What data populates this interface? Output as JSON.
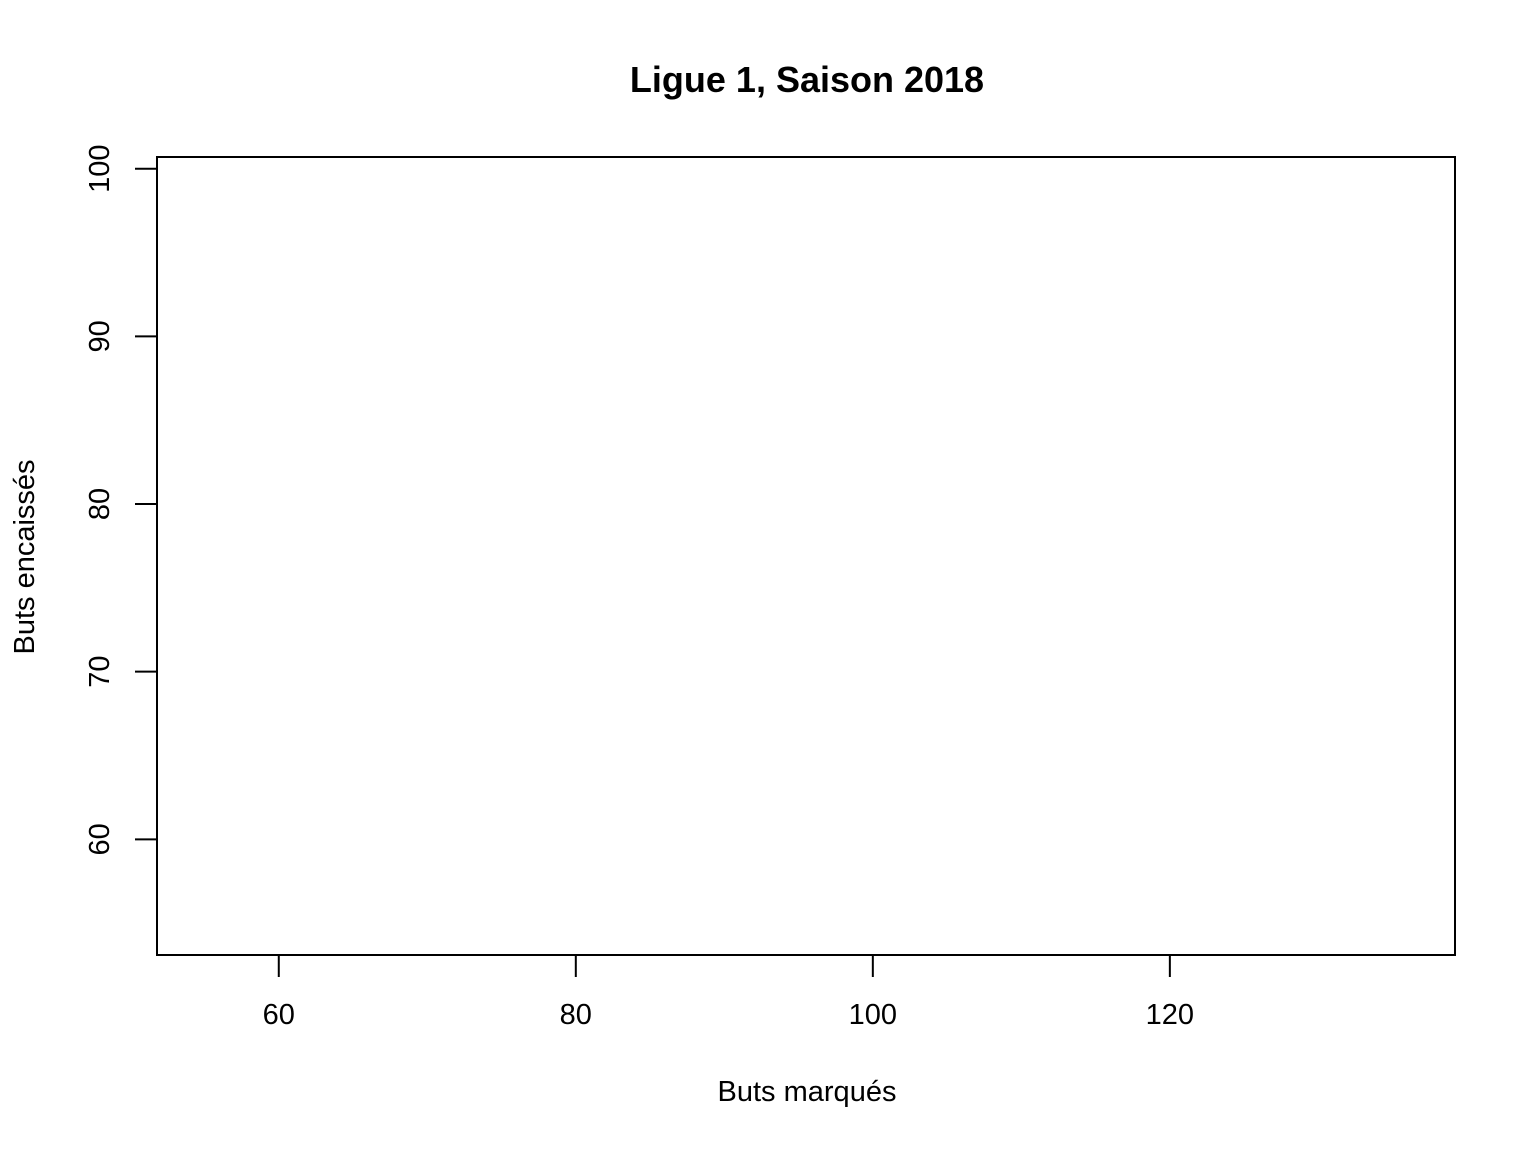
{
  "chart_data": {
    "type": "scatter",
    "title": "Ligue 1, Saison 2018",
    "xlabel": "Buts marqués",
    "ylabel": "Buts encaissés",
    "xlim": [
      51.8,
      139.2
    ],
    "ylim": [
      53.1,
      100.7
    ],
    "xticks": [
      60,
      80,
      100,
      120
    ],
    "yticks": [
      60,
      70,
      80,
      90,
      100
    ],
    "x_tick_labels": [
      "60",
      "80",
      "100",
      "120"
    ],
    "y_tick_labels": [
      "60",
      "70",
      "80",
      "90",
      "100"
    ],
    "points": [],
    "grid": false,
    "legend": "none",
    "colors": {
      "axis": "#000000",
      "background": "#ffffff"
    }
  }
}
